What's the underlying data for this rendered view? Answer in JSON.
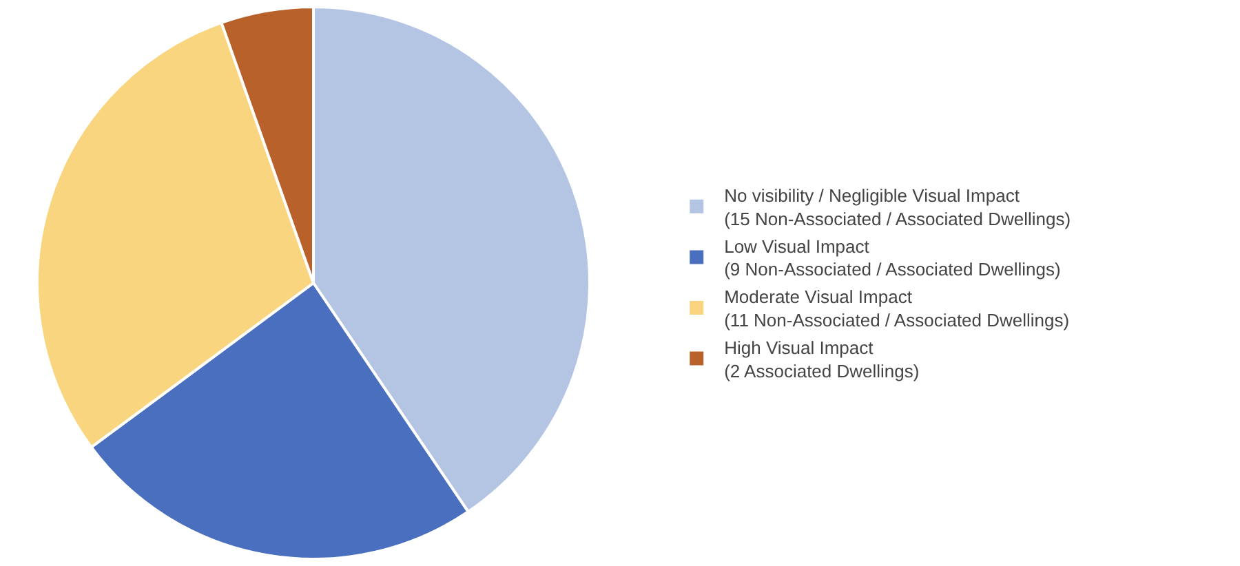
{
  "chart_data": {
    "type": "pie",
    "categories": [
      "No visibility / Negligible Visual Impact\n(15 Non-Associated / Associated Dwellings)",
      "Low Visual Impact\n(9 Non-Associated / Associated Dwellings)",
      "Moderate Visual Impact\n(11 Non-Associated / Associated Dwellings)",
      "High Visual Impact\n(2 Associated Dwellings)"
    ],
    "values": [
      15,
      9,
      11,
      2
    ],
    "colors": [
      "#b4c5e4",
      "#4a6fbf",
      "#f8d57e",
      "#b9612a"
    ],
    "legend": "right"
  }
}
